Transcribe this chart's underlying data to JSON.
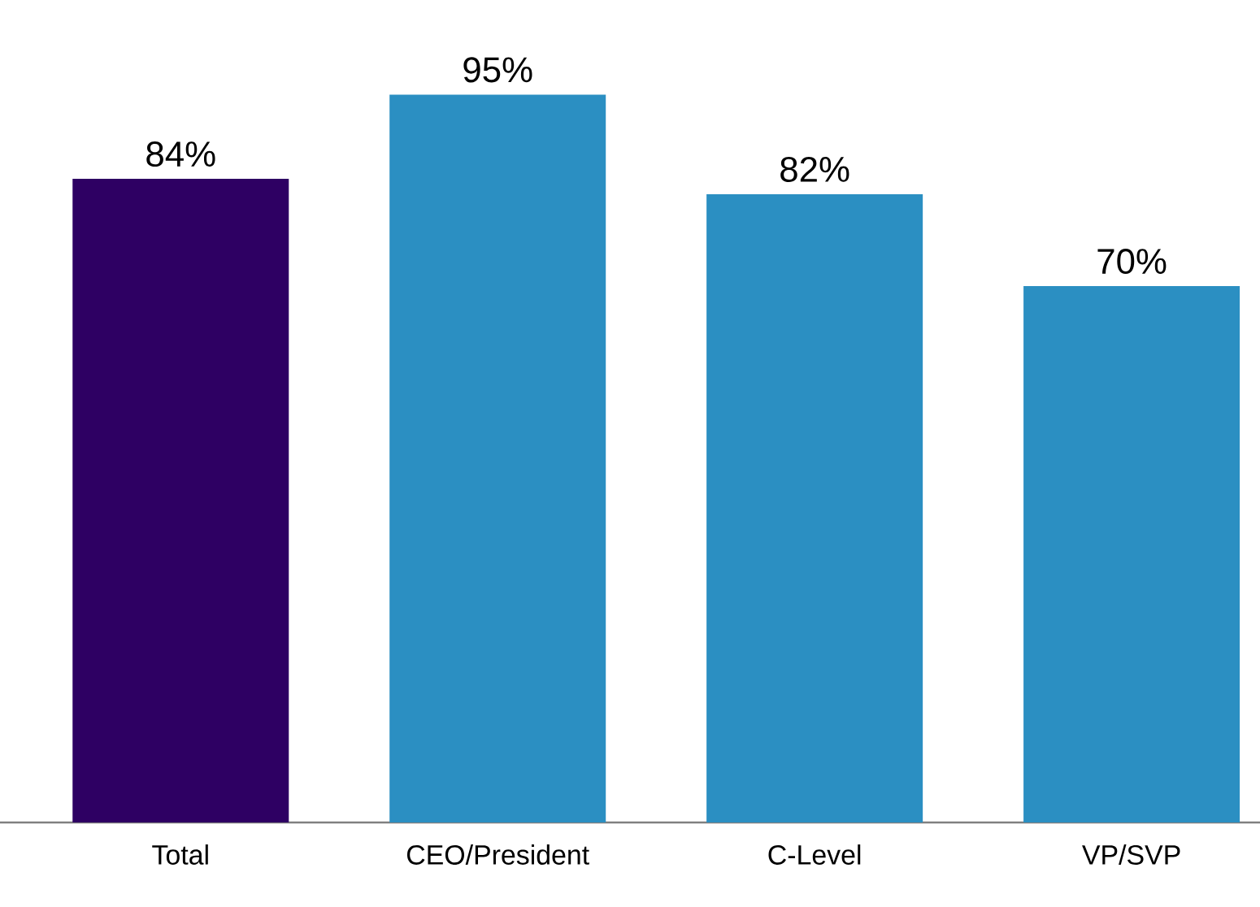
{
  "chart_data": {
    "type": "bar",
    "categories": [
      "Total",
      "CEO/President",
      "C-Level",
      "VP/SVP"
    ],
    "values": [
      84,
      95,
      82,
      70
    ],
    "colors": [
      "#2e0063",
      "#2b8fc2",
      "#2b8fc2",
      "#2b8fc2"
    ],
    "value_labels": [
      "84%",
      "95%",
      "82%",
      "70%"
    ]
  }
}
